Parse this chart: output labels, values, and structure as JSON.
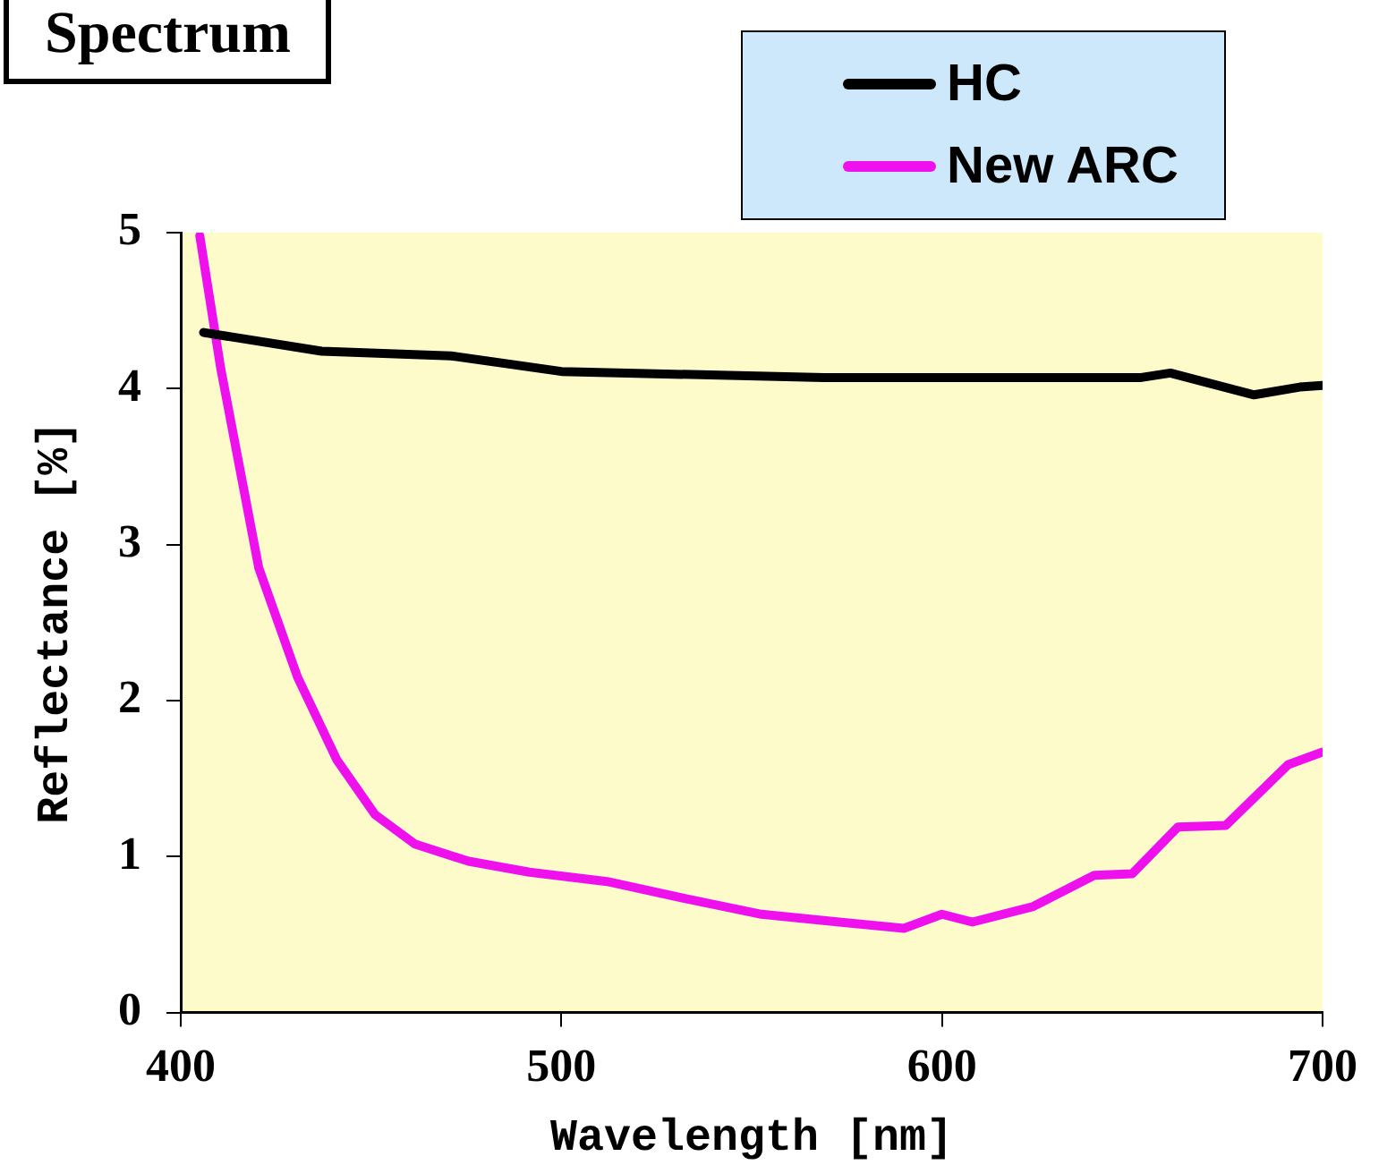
{
  "chart_data": {
    "type": "line",
    "title": "Spectrum",
    "xlabel": "Wavelength [nm]",
    "ylabel": "Reflectance [%]",
    "xlim": [
      400,
      700
    ],
    "xticks": [
      400,
      500,
      600,
      700
    ],
    "ylim": [
      0,
      5
    ],
    "yticks": [
      0,
      1,
      2,
      3,
      4,
      5
    ],
    "grid": false,
    "legend": "top right",
    "marker": "none",
    "line_style": "solid",
    "series": [
      {
        "name": "HC",
        "color": "#000000",
        "x": [
          406,
          437,
          471,
          500,
          569,
          652,
          660,
          682,
          694,
          700
        ],
        "values": [
          4.36,
          4.24,
          4.21,
          4.11,
          4.07,
          4.07,
          4.1,
          3.96,
          4.01,
          4.02
        ]
      },
      {
        "name": "New ARC",
        "color": "#ee11ee",
        "x": [
          405,
          410.5,
          420.5,
          430.7,
          441,
          451,
          461.5,
          475.6,
          491.6,
          512,
          532.7,
          552.6,
          573,
          590,
          600,
          608,
          624,
          640,
          650,
          662,
          674.6,
          691,
          700
        ],
        "values": [
          4.98,
          4.13,
          2.85,
          2.15,
          1.62,
          1.27,
          1.08,
          0.97,
          0.9,
          0.84,
          0.73,
          0.63,
          0.58,
          0.54,
          0.63,
          0.58,
          0.68,
          0.88,
          0.89,
          1.19,
          1.2,
          1.59,
          1.67
        ]
      }
    ]
  }
}
